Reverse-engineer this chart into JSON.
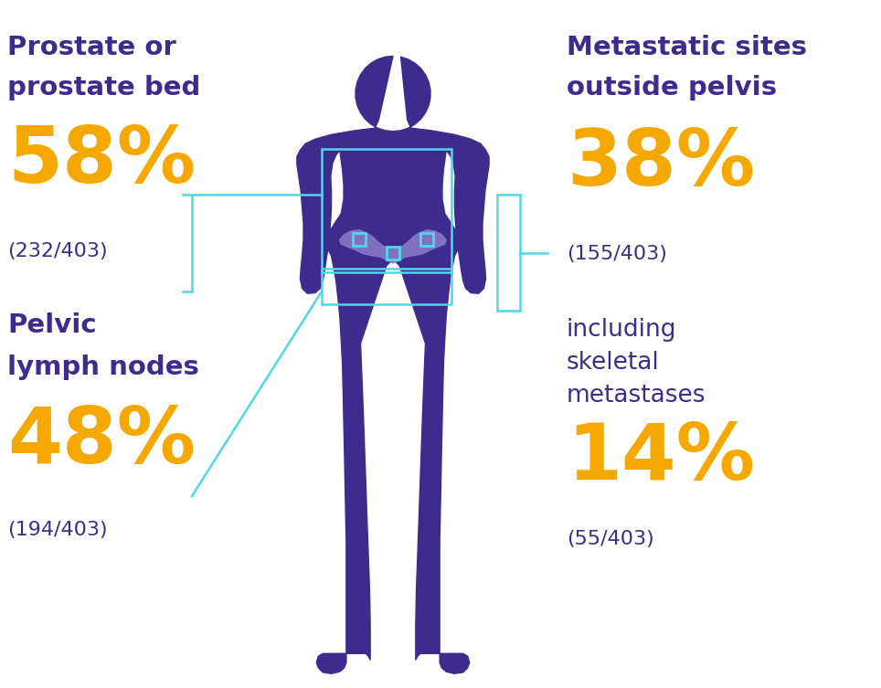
{
  "bg_color": "#ffffff",
  "body_color": "#3d2b8e",
  "pelvis_color": "#8878c8",
  "cyan_line_color": "#4dd9e8",
  "purple_text_color": "#3d2b8e",
  "gold_text_color": "#f5a800",
  "left_label1_line1": "Prostate or",
  "left_label1_line2": "prostate bed",
  "left_pct1": "58%",
  "left_sub1": "(232/403)",
  "left_label2_line1": "Pelvic",
  "left_label2_line2": "lymph nodes",
  "left_pct2": "48%",
  "left_sub2": "(194/403)",
  "right_label1_line1": "Metastatic sites",
  "right_label1_line2": "outside pelvis",
  "right_pct1": "38%",
  "right_sub1": "(155/403)",
  "right_label2_line1": "including",
  "right_label2_line2": "skeletal",
  "right_label2_line3": "metastases",
  "right_pct2": "14%",
  "right_sub2": "(55/403)"
}
